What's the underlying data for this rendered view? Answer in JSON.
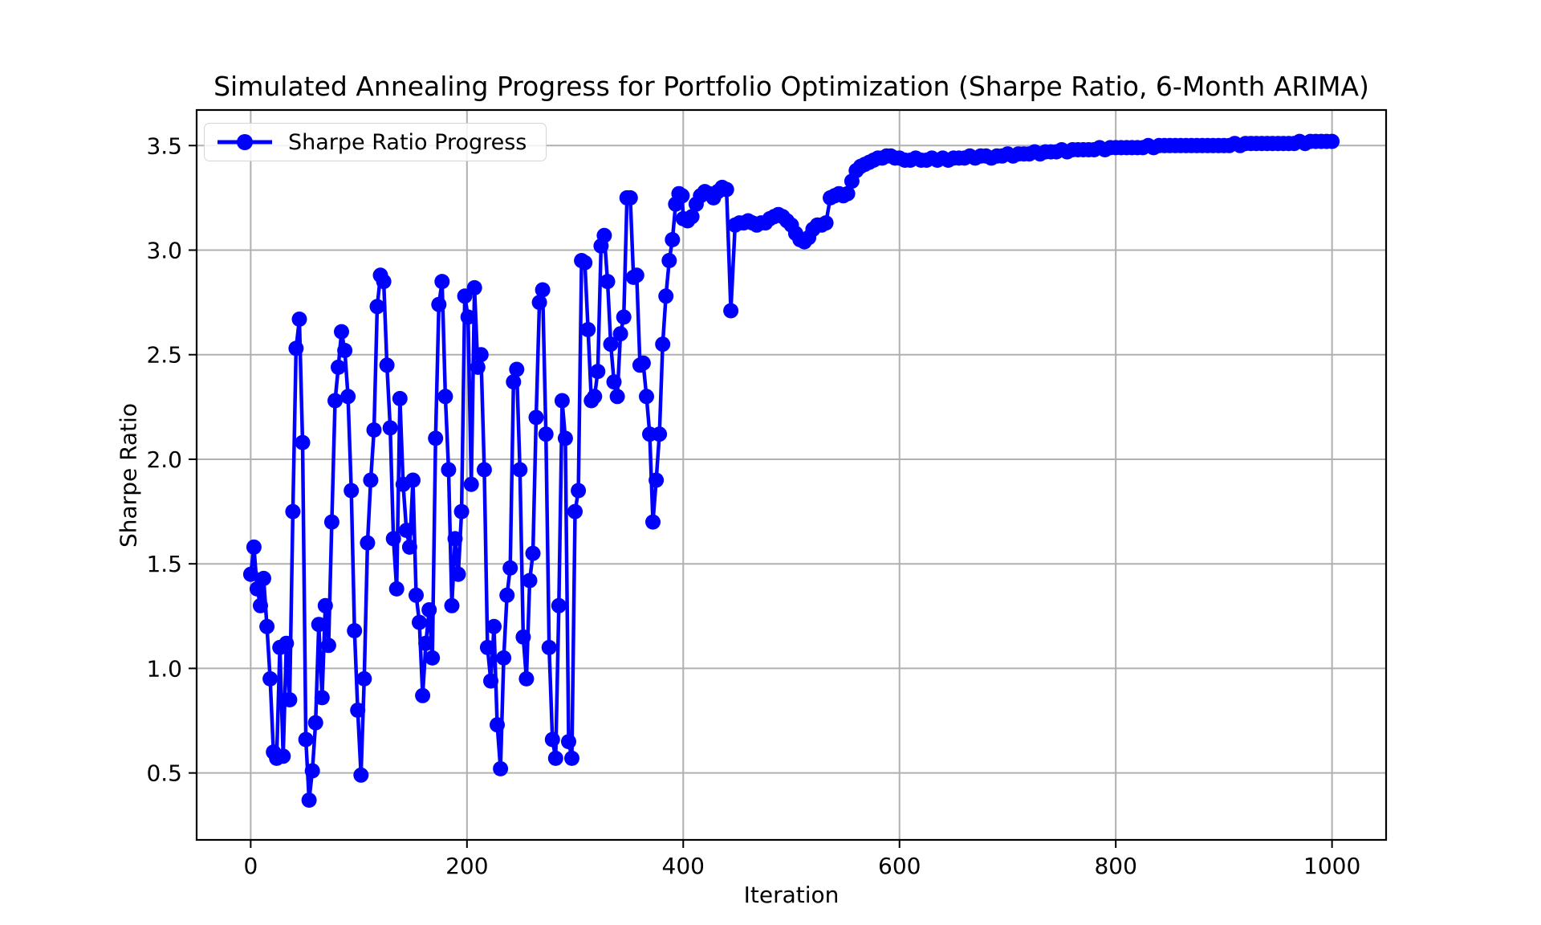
{
  "chart_data": {
    "type": "line",
    "title": "Simulated Annealing Progress for Portfolio Optimization (Sharpe Ratio, 6-Month ARIMA)",
    "xlabel": "Iteration",
    "ylabel": "Sharpe Ratio",
    "legend": {
      "label": "Sharpe Ratio Progress",
      "position": "upper-left"
    },
    "series_name": "Sharpe Ratio Progress",
    "line_color": "#0000ff",
    "marker": "circle",
    "grid": true,
    "grid_color": "#b0b0b0",
    "spine_color": "#000000",
    "xlim": [
      -50,
      1050
    ],
    "ylim": [
      0.18,
      3.67
    ],
    "xticks": [
      0,
      200,
      400,
      600,
      800,
      1000
    ],
    "xtick_labels": [
      "0",
      "200",
      "400",
      "600",
      "800",
      "1000"
    ],
    "yticks": [
      0.5,
      1.0,
      1.5,
      2.0,
      2.5,
      3.0,
      3.5
    ],
    "ytick_labels": [
      "0.5",
      "1.0",
      "1.5",
      "2.0",
      "2.5",
      "3.0",
      "3.5"
    ],
    "points": [
      [
        0,
        1.45
      ],
      [
        3,
        1.58
      ],
      [
        6,
        1.38
      ],
      [
        9,
        1.3
      ],
      [
        12,
        1.43
      ],
      [
        15,
        1.2
      ],
      [
        18,
        0.95
      ],
      [
        21,
        0.6
      ],
      [
        24,
        0.57
      ],
      [
        27,
        1.1
      ],
      [
        30,
        0.58
      ],
      [
        33,
        1.12
      ],
      [
        36,
        0.85
      ],
      [
        39,
        1.75
      ],
      [
        42,
        2.53
      ],
      [
        45,
        2.67
      ],
      [
        48,
        2.08
      ],
      [
        51,
        0.66
      ],
      [
        54,
        0.37
      ],
      [
        57,
        0.51
      ],
      [
        60,
        0.74
      ],
      [
        63,
        1.21
      ],
      [
        66,
        0.86
      ],
      [
        69,
        1.3
      ],
      [
        72,
        1.11
      ],
      [
        75,
        1.7
      ],
      [
        78,
        2.28
      ],
      [
        81,
        2.44
      ],
      [
        84,
        2.61
      ],
      [
        87,
        2.52
      ],
      [
        90,
        2.3
      ],
      [
        93,
        1.85
      ],
      [
        96,
        1.18
      ],
      [
        99,
        0.8
      ],
      [
        102,
        0.49
      ],
      [
        105,
        0.95
      ],
      [
        108,
        1.6
      ],
      [
        111,
        1.9
      ],
      [
        114,
        2.14
      ],
      [
        117,
        2.73
      ],
      [
        120,
        2.88
      ],
      [
        123,
        2.85
      ],
      [
        126,
        2.45
      ],
      [
        129,
        2.15
      ],
      [
        132,
        1.62
      ],
      [
        135,
        1.38
      ],
      [
        138,
        2.29
      ],
      [
        141,
        1.88
      ],
      [
        144,
        1.66
      ],
      [
        147,
        1.58
      ],
      [
        150,
        1.9
      ],
      [
        153,
        1.35
      ],
      [
        156,
        1.22
      ],
      [
        159,
        0.87
      ],
      [
        162,
        1.12
      ],
      [
        165,
        1.28
      ],
      [
        168,
        1.05
      ],
      [
        171,
        2.1
      ],
      [
        174,
        2.74
      ],
      [
        177,
        2.85
      ],
      [
        180,
        2.3
      ],
      [
        183,
        1.95
      ],
      [
        186,
        1.3
      ],
      [
        189,
        1.62
      ],
      [
        192,
        1.45
      ],
      [
        195,
        1.75
      ],
      [
        198,
        2.78
      ],
      [
        201,
        2.68
      ],
      [
        204,
        1.88
      ],
      [
        207,
        2.82
      ],
      [
        210,
        2.44
      ],
      [
        213,
        2.5
      ],
      [
        216,
        1.95
      ],
      [
        219,
        1.1
      ],
      [
        222,
        0.94
      ],
      [
        225,
        1.2
      ],
      [
        228,
        0.73
      ],
      [
        231,
        0.52
      ],
      [
        234,
        1.05
      ],
      [
        237,
        1.35
      ],
      [
        240,
        1.48
      ],
      [
        243,
        2.37
      ],
      [
        246,
        2.43
      ],
      [
        249,
        1.95
      ],
      [
        252,
        1.15
      ],
      [
        255,
        0.95
      ],
      [
        258,
        1.42
      ],
      [
        261,
        1.55
      ],
      [
        264,
        2.2
      ],
      [
        267,
        2.75
      ],
      [
        270,
        2.81
      ],
      [
        273,
        2.12
      ],
      [
        276,
        1.1
      ],
      [
        279,
        0.66
      ],
      [
        282,
        0.57
      ],
      [
        285,
        1.3
      ],
      [
        288,
        2.28
      ],
      [
        291,
        2.1
      ],
      [
        294,
        0.65
      ],
      [
        297,
        0.57
      ],
      [
        300,
        1.75
      ],
      [
        303,
        1.85
      ],
      [
        306,
        2.95
      ],
      [
        309,
        2.94
      ],
      [
        312,
        2.62
      ],
      [
        315,
        2.28
      ],
      [
        318,
        2.3
      ],
      [
        321,
        2.42
      ],
      [
        324,
        3.02
      ],
      [
        327,
        3.07
      ],
      [
        330,
        2.85
      ],
      [
        333,
        2.55
      ],
      [
        336,
        2.37
      ],
      [
        339,
        2.3
      ],
      [
        342,
        2.6
      ],
      [
        345,
        2.68
      ],
      [
        348,
        3.25
      ],
      [
        351,
        3.25
      ],
      [
        354,
        2.87
      ],
      [
        357,
        2.88
      ],
      [
        360,
        2.45
      ],
      [
        363,
        2.46
      ],
      [
        366,
        2.3
      ],
      [
        369,
        2.12
      ],
      [
        372,
        1.7
      ],
      [
        375,
        1.9
      ],
      [
        378,
        2.12
      ],
      [
        381,
        2.55
      ],
      [
        384,
        2.78
      ],
      [
        387,
        2.95
      ],
      [
        390,
        3.05
      ],
      [
        393,
        3.22
      ],
      [
        396,
        3.27
      ],
      [
        399,
        3.26
      ],
      [
        400,
        3.15
      ],
      [
        404,
        3.14
      ],
      [
        408,
        3.16
      ],
      [
        412,
        3.22
      ],
      [
        416,
        3.26
      ],
      [
        420,
        3.28
      ],
      [
        424,
        3.27
      ],
      [
        428,
        3.25
      ],
      [
        432,
        3.28
      ],
      [
        436,
        3.3
      ],
      [
        440,
        3.29
      ],
      [
        444,
        2.71
      ],
      [
        448,
        3.12
      ],
      [
        452,
        3.13
      ],
      [
        456,
        3.13
      ],
      [
        460,
        3.14
      ],
      [
        464,
        3.13
      ],
      [
        468,
        3.12
      ],
      [
        472,
        3.13
      ],
      [
        476,
        3.13
      ],
      [
        480,
        3.15
      ],
      [
        484,
        3.16
      ],
      [
        488,
        3.17
      ],
      [
        492,
        3.16
      ],
      [
        496,
        3.14
      ],
      [
        500,
        3.12
      ],
      [
        504,
        3.08
      ],
      [
        508,
        3.05
      ],
      [
        512,
        3.04
      ],
      [
        516,
        3.06
      ],
      [
        520,
        3.1
      ],
      [
        524,
        3.12
      ],
      [
        528,
        3.12
      ],
      [
        532,
        3.13
      ],
      [
        536,
        3.25
      ],
      [
        540,
        3.26
      ],
      [
        544,
        3.27
      ],
      [
        548,
        3.26
      ],
      [
        552,
        3.27
      ],
      [
        556,
        3.33
      ],
      [
        560,
        3.38
      ],
      [
        564,
        3.4
      ],
      [
        568,
        3.41
      ],
      [
        572,
        3.42
      ],
      [
        576,
        3.43
      ],
      [
        580,
        3.44
      ],
      [
        584,
        3.44
      ],
      [
        588,
        3.45
      ],
      [
        592,
        3.45
      ],
      [
        596,
        3.44
      ],
      [
        600,
        3.44
      ],
      [
        605,
        3.43
      ],
      [
        610,
        3.43
      ],
      [
        615,
        3.44
      ],
      [
        620,
        3.43
      ],
      [
        625,
        3.43
      ],
      [
        630,
        3.44
      ],
      [
        635,
        3.43
      ],
      [
        640,
        3.44
      ],
      [
        645,
        3.43
      ],
      [
        650,
        3.44
      ],
      [
        655,
        3.44
      ],
      [
        660,
        3.44
      ],
      [
        665,
        3.45
      ],
      [
        670,
        3.44
      ],
      [
        675,
        3.45
      ],
      [
        680,
        3.45
      ],
      [
        685,
        3.44
      ],
      [
        690,
        3.45
      ],
      [
        695,
        3.45
      ],
      [
        700,
        3.46
      ],
      [
        705,
        3.45
      ],
      [
        710,
        3.46
      ],
      [
        715,
        3.46
      ],
      [
        720,
        3.46
      ],
      [
        725,
        3.47
      ],
      [
        730,
        3.46
      ],
      [
        735,
        3.47
      ],
      [
        740,
        3.47
      ],
      [
        745,
        3.47
      ],
      [
        750,
        3.48
      ],
      [
        755,
        3.47
      ],
      [
        760,
        3.48
      ],
      [
        765,
        3.48
      ],
      [
        770,
        3.48
      ],
      [
        775,
        3.48
      ],
      [
        780,
        3.48
      ],
      [
        785,
        3.49
      ],
      [
        790,
        3.48
      ],
      [
        795,
        3.49
      ],
      [
        800,
        3.49
      ],
      [
        805,
        3.49
      ],
      [
        810,
        3.49
      ],
      [
        815,
        3.49
      ],
      [
        820,
        3.49
      ],
      [
        825,
        3.49
      ],
      [
        830,
        3.5
      ],
      [
        835,
        3.49
      ],
      [
        840,
        3.5
      ],
      [
        845,
        3.5
      ],
      [
        850,
        3.5
      ],
      [
        855,
        3.5
      ],
      [
        860,
        3.5
      ],
      [
        865,
        3.5
      ],
      [
        870,
        3.5
      ],
      [
        875,
        3.5
      ],
      [
        880,
        3.5
      ],
      [
        885,
        3.5
      ],
      [
        890,
        3.5
      ],
      [
        895,
        3.5
      ],
      [
        900,
        3.5
      ],
      [
        905,
        3.5
      ],
      [
        910,
        3.51
      ],
      [
        915,
        3.5
      ],
      [
        920,
        3.51
      ],
      [
        925,
        3.51
      ],
      [
        930,
        3.51
      ],
      [
        935,
        3.51
      ],
      [
        940,
        3.51
      ],
      [
        945,
        3.51
      ],
      [
        950,
        3.51
      ],
      [
        955,
        3.51
      ],
      [
        960,
        3.51
      ],
      [
        965,
        3.51
      ],
      [
        970,
        3.52
      ],
      [
        975,
        3.51
      ],
      [
        980,
        3.52
      ],
      [
        985,
        3.52
      ],
      [
        990,
        3.52
      ],
      [
        995,
        3.52
      ],
      [
        1000,
        3.52
      ]
    ]
  }
}
